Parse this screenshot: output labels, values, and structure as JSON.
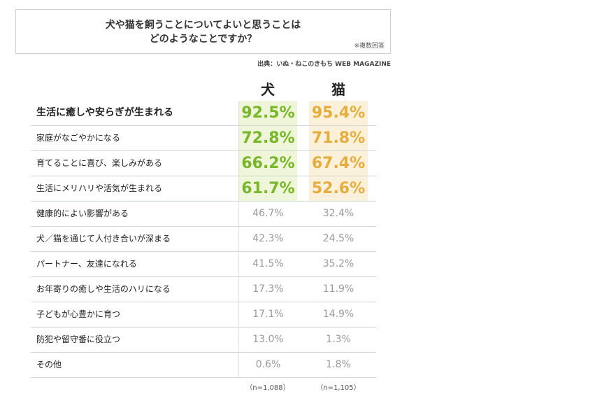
{
  "question": {
    "line1": "犬や猫を飼うことについてよいと思うことは",
    "line2": "どのようなことですか？",
    "note": "※複数回答"
  },
  "source": "出典：いぬ・ねこのきもち WEB MAGAZINE",
  "colors": {
    "dog_highlight": "#78b62a",
    "cat_highlight": "#e5ad3e",
    "muted": "#999999"
  },
  "chart_data": {
    "type": "table",
    "columns": [
      "犬",
      "猫"
    ],
    "rows": [
      {
        "label": "生活に癒しや安らぎが生まれる",
        "dog": "92.5%",
        "cat": "95.4%"
      },
      {
        "label": "家庭がなごやかになる",
        "dog": "72.8%",
        "cat": "71.8%"
      },
      {
        "label": "育てることに喜び、楽しみがある",
        "dog": "66.2%",
        "cat": "67.4%"
      },
      {
        "label": "生活にメリハリや活気が生まれる",
        "dog": "61.7%",
        "cat": "52.6%"
      },
      {
        "label": "健康的によい影響がある",
        "dog": "46.7%",
        "cat": "32.4%"
      },
      {
        "label": "犬／猫を通じて人付き合いが深まる",
        "dog": "42.3%",
        "cat": "24.5%"
      },
      {
        "label": "パートナー、友達になれる",
        "dog": "41.5%",
        "cat": "35.2%"
      },
      {
        "label": "お年寄りの癒しや生活のハリになる",
        "dog": "17.3%",
        "cat": "11.9%"
      },
      {
        "label": "子どもが心豊かに育つ",
        "dog": "17.1%",
        "cat": "14.9%"
      },
      {
        "label": "防犯や留守番に役立つ",
        "dog": "13.0%",
        "cat": "1.3%"
      },
      {
        "label": "その他",
        "dog": "0.6%",
        "cat": "1.8%"
      }
    ],
    "highlighted_rows": 4,
    "sample_sizes": {
      "dog": "（n=1,088）",
      "cat": "（n=1,105）"
    }
  }
}
